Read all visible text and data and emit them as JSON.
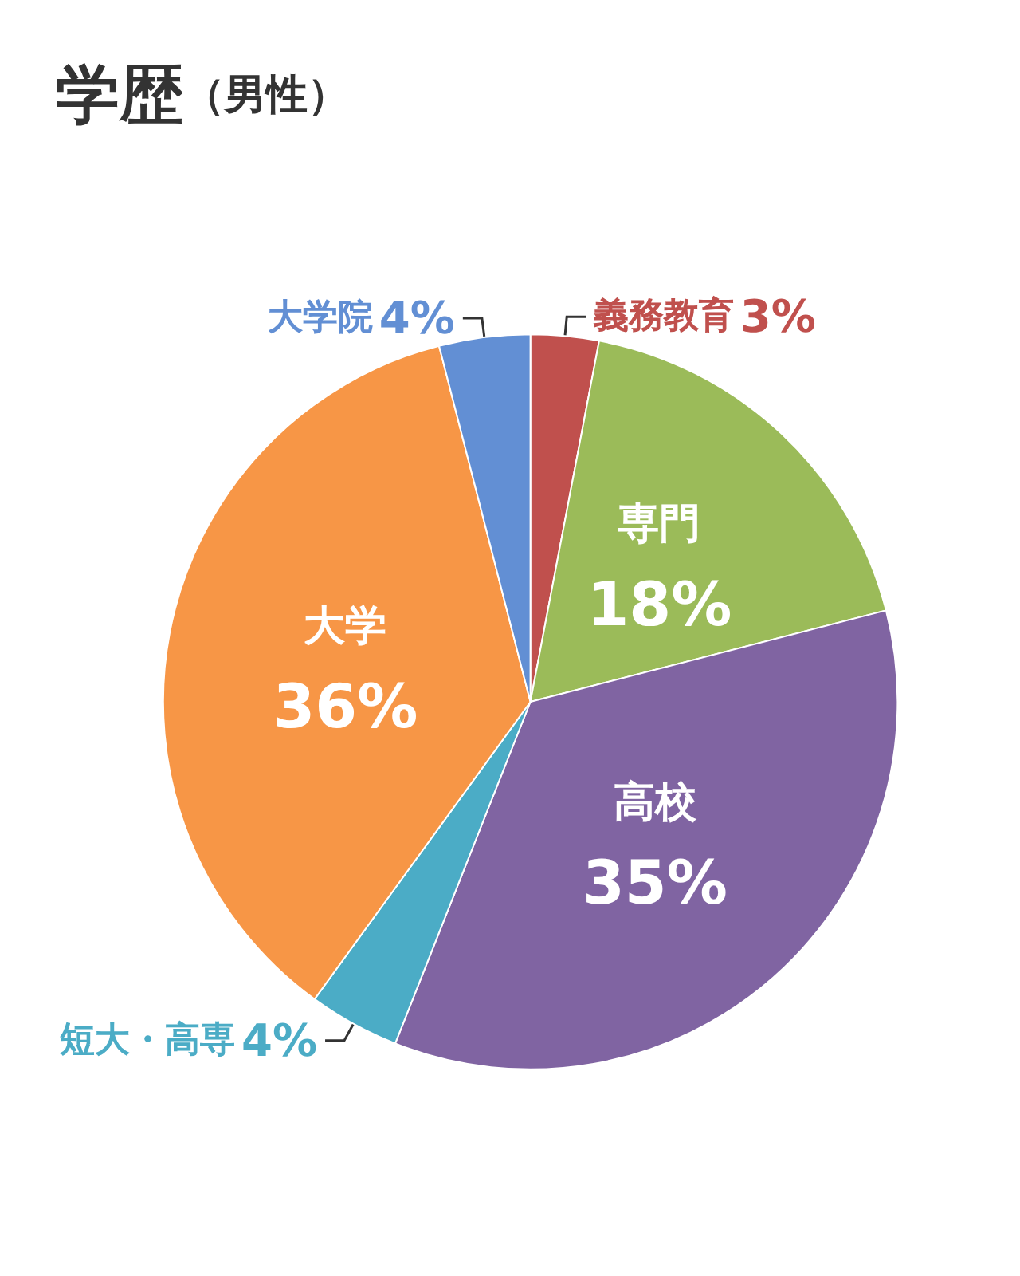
{
  "chart_data": {
    "type": "pie",
    "title": "学歴",
    "subtitle": "（男性）",
    "categories": [
      "義務教育",
      "専門",
      "高校",
      "短大・高専",
      "大学",
      "大学院"
    ],
    "values": [
      3,
      18,
      35,
      4,
      36,
      4
    ],
    "value_labels": [
      "3%",
      "18%",
      "35%",
      "4%",
      "36%",
      "4%"
    ],
    "colors": [
      "#c0504d",
      "#9bbb59",
      "#8064a2",
      "#4bacc6",
      "#f79646",
      "#628fd4"
    ],
    "legend": false
  }
}
